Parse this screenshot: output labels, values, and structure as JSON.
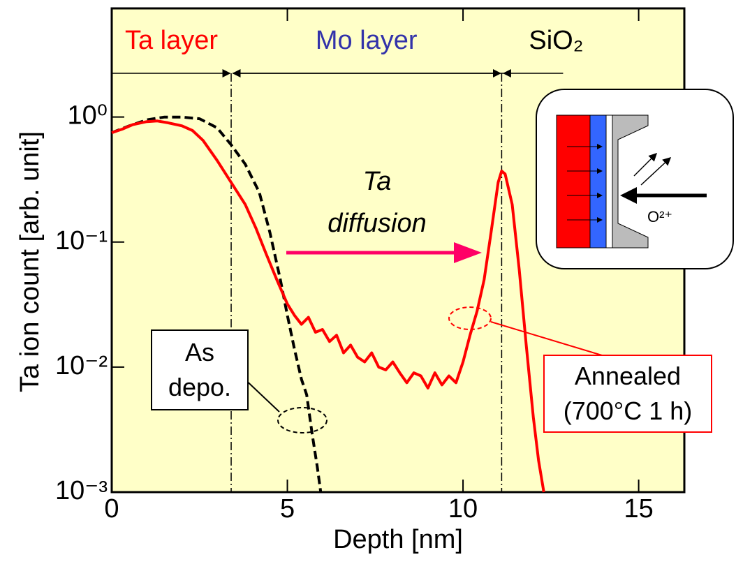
{
  "chart_data": {
    "type": "line",
    "x_label": "Depth [nm]",
    "y_label": "Ta ion count [arb. unit]",
    "xlim": [
      0,
      16.3
    ],
    "xticks": [
      0,
      5,
      10,
      15
    ],
    "ylim": [
      0.001,
      7.4
    ],
    "yticks": [
      {
        "value": 1,
        "label": "10⁰"
      },
      {
        "value": 0.1,
        "label": "10⁻¹"
      },
      {
        "value": 0.01,
        "label": "10⁻²"
      },
      {
        "value": 0.001,
        "label": "10⁻³"
      }
    ],
    "log_y": true,
    "background": "#ffffc8",
    "regions": [
      {
        "text": "Ta layer",
        "color": "#ff0000"
      },
      {
        "text": "Mo layer",
        "color": "#3333aa"
      },
      {
        "text": "SiO₂",
        "color": "#000000"
      }
    ],
    "boundaries": [
      3.4,
      11.1
    ],
    "arrow_text": [
      "Ta",
      "diffusion"
    ],
    "arrow_color": "#ff0066",
    "annealed_note": "(700°C 1 h)",
    "inset_label": "O²⁺",
    "series": [
      {
        "name": "Annealed",
        "color": "#ff0000",
        "dashed": false,
        "x": [
          0,
          0.3,
          0.6,
          1.0,
          1.3,
          1.6,
          2.0,
          2.3,
          2.6,
          3.0,
          3.4,
          3.8,
          4.1,
          4.4,
          4.7,
          5.0,
          5.2,
          5.4,
          5.6,
          5.8,
          6.0,
          6.2,
          6.4,
          6.6,
          6.8,
          7.0,
          7.2,
          7.4,
          7.6,
          7.8,
          8.0,
          8.2,
          8.4,
          8.6,
          8.8,
          9.0,
          9.2,
          9.4,
          9.6,
          9.8,
          10.0,
          10.2,
          10.4,
          10.6,
          10.8,
          11.0,
          11.1,
          11.2,
          11.4,
          11.6,
          11.8,
          12.0,
          12.15,
          12.3
        ],
        "values": [
          0.75,
          0.8,
          0.87,
          0.92,
          0.93,
          0.9,
          0.85,
          0.78,
          0.65,
          0.45,
          0.3,
          0.2,
          0.13,
          0.08,
          0.05,
          0.032,
          0.026,
          0.022,
          0.025,
          0.019,
          0.02,
          0.016,
          0.018,
          0.013,
          0.015,
          0.012,
          0.011,
          0.013,
          0.01,
          0.0095,
          0.011,
          0.009,
          0.0075,
          0.009,
          0.0085,
          0.0068,
          0.009,
          0.0072,
          0.0085,
          0.0075,
          0.011,
          0.018,
          0.028,
          0.05,
          0.12,
          0.3,
          0.37,
          0.35,
          0.2,
          0.06,
          0.015,
          0.004,
          0.0018,
          0.001
        ]
      },
      {
        "name": "As depo.",
        "color": "#000000",
        "dashed": true,
        "x": [
          0,
          0.5,
          1.0,
          1.5,
          2.0,
          2.5,
          3.0,
          3.4,
          3.8,
          4.2,
          4.5,
          4.8,
          5.0,
          5.2,
          5.4,
          5.55,
          5.7,
          5.85,
          5.95
        ],
        "values": [
          0.75,
          0.85,
          0.95,
          1.0,
          1.0,
          0.97,
          0.82,
          0.6,
          0.42,
          0.25,
          0.12,
          0.05,
          0.026,
          0.014,
          0.008,
          0.006,
          0.003,
          0.0016,
          0.001
        ]
      }
    ]
  }
}
